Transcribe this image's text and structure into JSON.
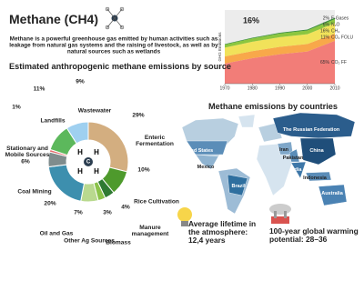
{
  "header": {
    "title": "Methane (CH4)",
    "description": "Methane is a powerful greenhouse gas emitted by human activities such as leakage from natural gas systems and the raising of livestock, as well as by natural sources such as wetlands"
  },
  "chart_data": [
    {
      "type": "area",
      "annotation": "16%",
      "y_label": "GHG Emissions",
      "x": [
        1970,
        1980,
        1990,
        2000,
        2010
      ],
      "xlim": [
        1970,
        2010
      ],
      "xticks": [
        1970,
        1980,
        1990,
        2000,
        2010
      ],
      "ylim": [
        0,
        55
      ],
      "series": [
        {
          "name": "CO₂ FF",
          "color": "#f27d78",
          "values": [
            15,
            19,
            22,
            24,
            32
          ],
          "share": 65,
          "share_label": "65%"
        },
        {
          "name": "CO₂ FOLU",
          "color": "#f8a84a",
          "values": [
            5.3,
            5.3,
            5.5,
            5.6,
            5.4
          ],
          "share": 11,
          "share_label": "11%"
        },
        {
          "name": "CH₄",
          "color": "#f1e25a",
          "values": [
            6.6,
            7.0,
            7.2,
            7.3,
            7.8
          ],
          "share": 16,
          "share_label": "16%"
        },
        {
          "name": "N₂O",
          "color": "#8cc63f",
          "values": [
            2.2,
            2.5,
            2.7,
            2.8,
            3.0
          ],
          "share": 6,
          "share_label": "6%"
        },
        {
          "name": "F-Gases",
          "color": "#3a8f3a",
          "values": [
            0.4,
            0.5,
            0.6,
            0.7,
            1.0
          ],
          "share": 2,
          "share_label": "2%"
        }
      ]
    },
    {
      "type": "pie",
      "title": "Estimated anthropogenic methane emissions by source",
      "categories": [
        "Enteric Fermentation",
        "Rice Cultivation",
        "Manure management",
        "Biomass",
        "Other Ag Sources",
        "Oil and Gas",
        "Coal Mining",
        "Stationary and Mobile Sources",
        "Landfills",
        "Wastewater"
      ],
      "values": [
        29,
        10,
        4,
        3,
        7,
        20,
        6,
        1,
        11,
        9
      ],
      "value_labels": [
        "29%",
        "10%",
        "4%",
        "3%",
        "7%",
        "20%",
        "6%",
        "1%",
        "11%",
        "9%"
      ],
      "colors": [
        "#d3ae80",
        "#4e9a2c",
        "#2f7a33",
        "#8bc34a",
        "#b9d98f",
        "#3d8fae",
        "#7f8c8d",
        "#e46f6f",
        "#5cb85c",
        "#9fd0f0"
      ]
    }
  ],
  "map": {
    "title": "Methane emissions by countries",
    "countries": [
      "The Russian Federation",
      "The United States",
      "Mexico",
      "Brazil",
      "Iran",
      "Pakistan",
      "China",
      "India",
      "Indonesia",
      "Australia"
    ]
  },
  "facts": [
    {
      "text": "Average lifetime in the atmosphere: 12,4 years"
    },
    {
      "text": "100-year global warming potential: 28–36"
    }
  ]
}
